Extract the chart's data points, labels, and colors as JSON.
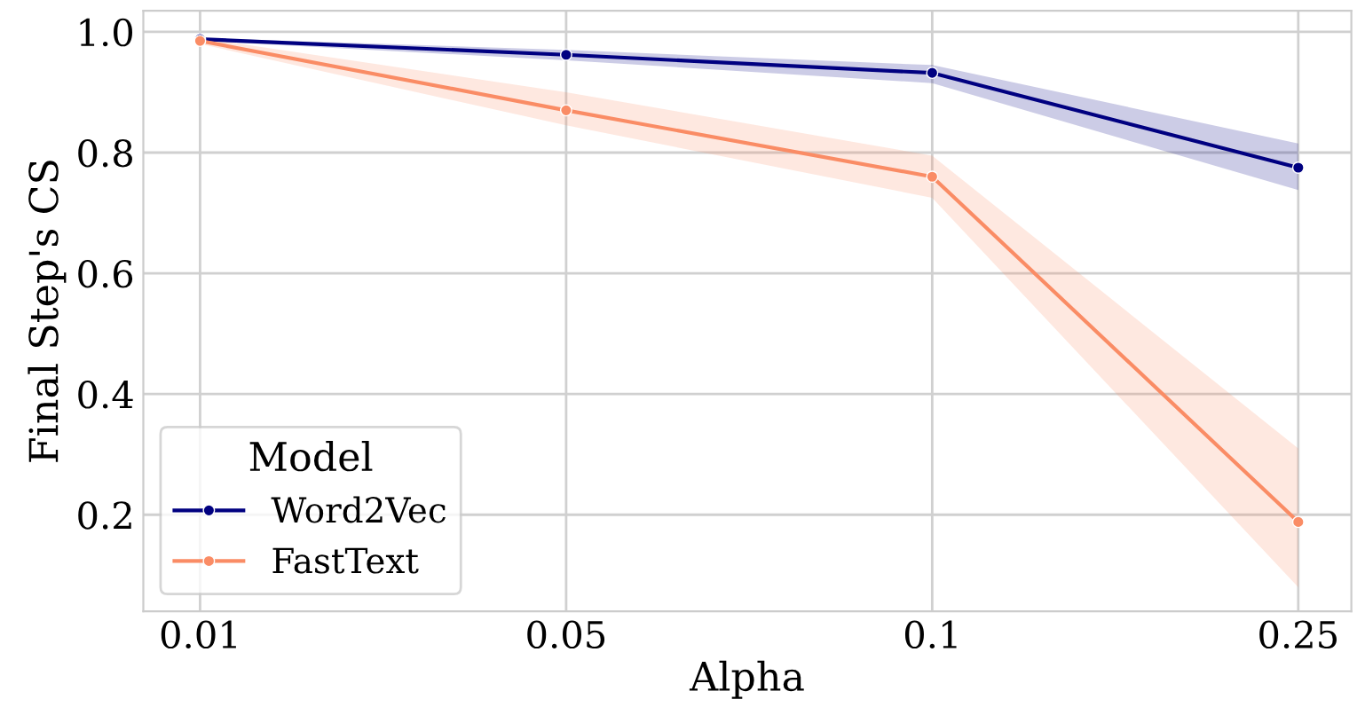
{
  "chart_data": {
    "type": "line",
    "xlabel": "Alpha",
    "ylabel": "Final Step's CS",
    "legend_title": "Model",
    "categories": [
      "0.01",
      "0.05",
      "0.1",
      "0.25"
    ],
    "series": [
      {
        "name": "Word2Vec",
        "color": "#000080",
        "values": [
          0.988,
          0.962,
          0.932,
          0.775
        ],
        "lower": [
          0.985,
          0.953,
          0.915,
          0.738
        ],
        "upper": [
          0.99,
          0.97,
          0.945,
          0.815
        ]
      },
      {
        "name": "FastText",
        "color": "#fa8c65",
        "values": [
          0.985,
          0.87,
          0.76,
          0.188
        ],
        "lower": [
          0.98,
          0.845,
          0.725,
          0.08
        ],
        "upper": [
          0.99,
          0.9,
          0.795,
          0.31
        ]
      }
    ],
    "ylim": [
      0.04,
      1.035
    ],
    "yticks": [
      {
        "value": 0.2,
        "label": "0.2"
      },
      {
        "value": 0.4,
        "label": "0.4"
      },
      {
        "value": 0.6,
        "label": "0.6"
      },
      {
        "value": 0.8,
        "label": "0.8"
      },
      {
        "value": 1.0,
        "label": "1.0"
      }
    ],
    "grid": true,
    "legend": "bottom left",
    "marker": "circle",
    "line_style": "solid"
  }
}
